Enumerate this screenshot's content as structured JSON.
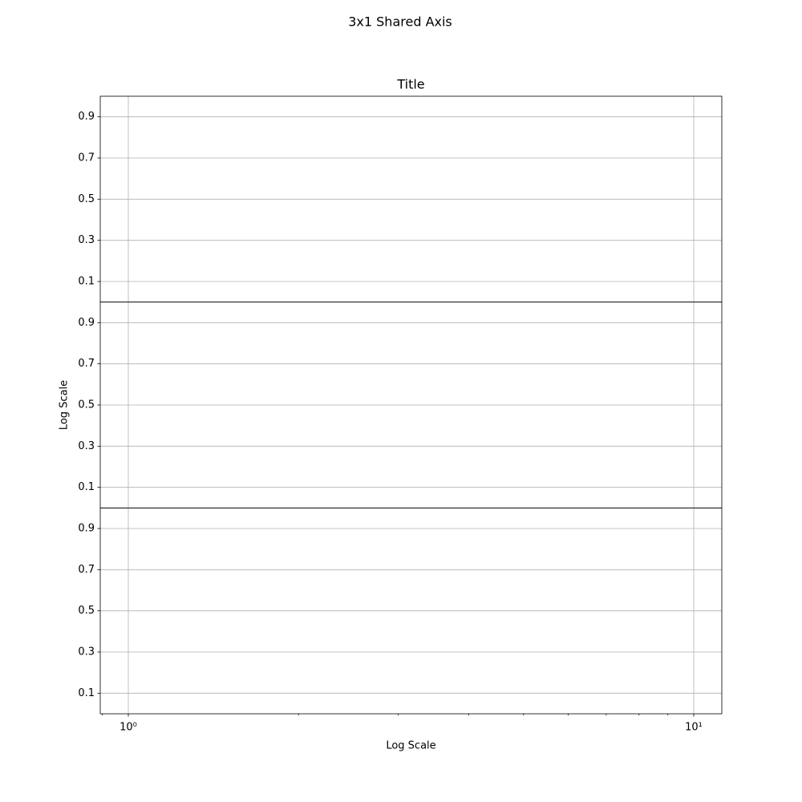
{
  "suptitle": "3x1 Shared Axis",
  "chart_data": [
    {
      "type": "line",
      "title": "Title",
      "series": [],
      "xscale": "log",
      "grid": true,
      "xlim": [
        0.892,
        11.21
      ],
      "xticks": [
        {
          "value": 1,
          "label": "10⁰"
        },
        {
          "value": 10,
          "label": "10¹"
        }
      ],
      "ylim": [
        0,
        1
      ],
      "yticks": [
        0.1,
        0.3,
        0.5,
        0.7,
        0.9
      ]
    },
    {
      "type": "line",
      "ylabel": "Log Scale",
      "series": [],
      "xscale": "log",
      "grid": true,
      "xlim": [
        0.892,
        11.21
      ],
      "xticks": [
        {
          "value": 1,
          "label": "10⁰"
        },
        {
          "value": 10,
          "label": "10¹"
        }
      ],
      "ylim": [
        0,
        1
      ],
      "yticks": [
        0.1,
        0.3,
        0.5,
        0.7,
        0.9
      ]
    },
    {
      "type": "line",
      "xlabel": "Log Scale",
      "series": [],
      "xscale": "log",
      "grid": true,
      "xlim": [
        0.892,
        11.21
      ],
      "xticks": [
        {
          "value": 1,
          "label": "10⁰"
        },
        {
          "value": 10,
          "label": "10¹"
        }
      ],
      "xminorticks": [
        0.9,
        2,
        3,
        4,
        5,
        6,
        7,
        8,
        9
      ],
      "ylim": [
        0,
        1
      ],
      "yticks": [
        0.1,
        0.3,
        0.5,
        0.7,
        0.9
      ]
    }
  ]
}
